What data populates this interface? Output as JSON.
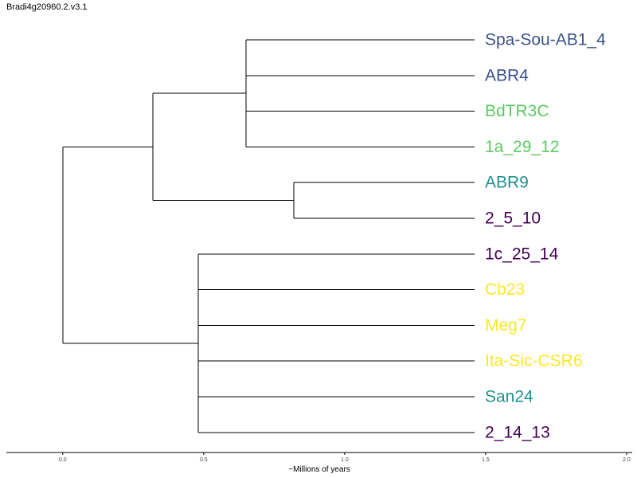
{
  "title": "Bradi4g20960.2.v3.1",
  "axis": {
    "label": "~Millions of years",
    "range": [
      -0.2,
      2.02
    ],
    "ticks": [
      "0.0",
      "0.5",
      "1.0",
      "1.5",
      "2.0"
    ]
  },
  "leaves": [
    {
      "label": "Spa-Sou-AB1_4",
      "color": "#3b528b"
    },
    {
      "label": "ABR4",
      "color": "#3b528b"
    },
    {
      "label": "BdTR3C",
      "color": "#5ec962"
    },
    {
      "label": "1a_29_12",
      "color": "#5ec962"
    },
    {
      "label": "ABR9",
      "color": "#21918c"
    },
    {
      "label": "2_5_10",
      "color": "#440154"
    },
    {
      "label": "1c_25_14",
      "color": "#440154"
    },
    {
      "label": "Cb23",
      "color": "#fde725"
    },
    {
      "label": "Meg7",
      "color": "#fde725"
    },
    {
      "label": "Ita-Sic-CSR6",
      "color": "#fde725"
    },
    {
      "label": "San24",
      "color": "#21918c"
    },
    {
      "label": "2_14_13",
      "color": "#440154"
    }
  ],
  "tree": {
    "age": 0.0,
    "children": [
      {
        "age": 0.32,
        "children": [
          {
            "age": 0.65,
            "children": [
              {
                "leaf": 0
              },
              {
                "leaf": 1
              },
              {
                "leaf": 2
              },
              {
                "leaf": 3
              }
            ]
          },
          {
            "age": 0.82,
            "children": [
              {
                "leaf": 4
              },
              {
                "leaf": 5
              }
            ]
          }
        ]
      },
      {
        "age": 0.48,
        "children": [
          {
            "leaf": 6
          },
          {
            "leaf": 7
          },
          {
            "leaf": 8
          },
          {
            "leaf": 9
          },
          {
            "leaf": 10
          },
          {
            "leaf": 11
          }
        ]
      }
    ]
  }
}
